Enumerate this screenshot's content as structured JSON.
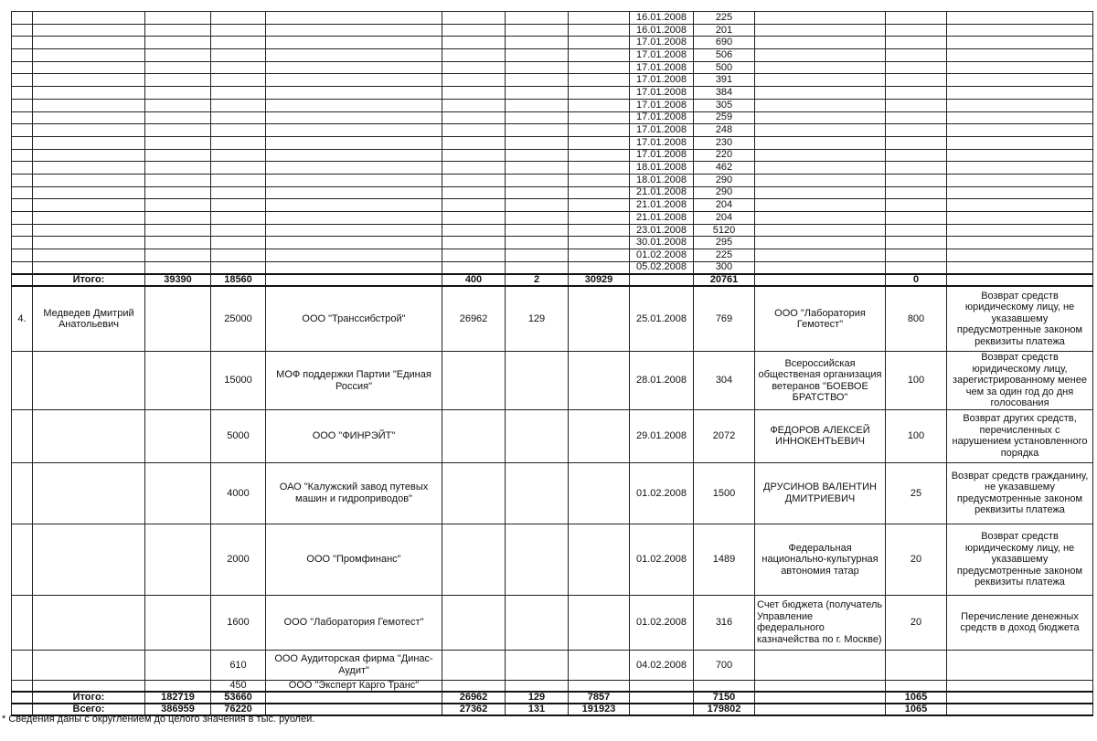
{
  "table": {
    "rows": [
      [
        "",
        "",
        "",
        "",
        "",
        "",
        "",
        "",
        "16.01.2008",
        "225",
        "",
        "",
        ""
      ],
      [
        "",
        "",
        "",
        "",
        "",
        "",
        "",
        "",
        "16.01.2008",
        "201",
        "",
        "",
        ""
      ],
      [
        "",
        "",
        "",
        "",
        "",
        "",
        "",
        "",
        "17.01.2008",
        "690",
        "",
        "",
        ""
      ],
      [
        "",
        "",
        "",
        "",
        "",
        "",
        "",
        "",
        "17.01.2008",
        "506",
        "",
        "",
        ""
      ],
      [
        "",
        "",
        "",
        "",
        "",
        "",
        "",
        "",
        "17.01.2008",
        "500",
        "",
        "",
        ""
      ],
      [
        "",
        "",
        "",
        "",
        "",
        "",
        "",
        "",
        "17.01.2008",
        "391",
        "",
        "",
        ""
      ],
      [
        "",
        "",
        "",
        "",
        "",
        "",
        "",
        "",
        "17.01.2008",
        "384",
        "",
        "",
        ""
      ],
      [
        "",
        "",
        "",
        "",
        "",
        "",
        "",
        "",
        "17.01.2008",
        "305",
        "",
        "",
        ""
      ],
      [
        "",
        "",
        "",
        "",
        "",
        "",
        "",
        "",
        "17.01.2008",
        "259",
        "",
        "",
        ""
      ],
      [
        "",
        "",
        "",
        "",
        "",
        "",
        "",
        "",
        "17.01.2008",
        "248",
        "",
        "",
        ""
      ],
      [
        "",
        "",
        "",
        "",
        "",
        "",
        "",
        "",
        "17.01.2008",
        "230",
        "",
        "",
        ""
      ],
      [
        "",
        "",
        "",
        "",
        "",
        "",
        "",
        "",
        "17.01.2008",
        "220",
        "",
        "",
        ""
      ],
      [
        "",
        "",
        "",
        "",
        "",
        "",
        "",
        "",
        "18.01.2008",
        "462",
        "",
        "",
        ""
      ],
      [
        "",
        "",
        "",
        "",
        "",
        "",
        "",
        "",
        "18.01.2008",
        "290",
        "",
        "",
        ""
      ],
      [
        "",
        "",
        "",
        "",
        "",
        "",
        "",
        "",
        "21.01.2008",
        "290",
        "",
        "",
        ""
      ],
      [
        "",
        "",
        "",
        "",
        "",
        "",
        "",
        "",
        "21.01.2008",
        "204",
        "",
        "",
        ""
      ],
      [
        "",
        "",
        "",
        "",
        "",
        "",
        "",
        "",
        "21.01.2008",
        "204",
        "",
        "",
        ""
      ],
      [
        "",
        "",
        "",
        "",
        "",
        "",
        "",
        "",
        "23.01.2008",
        "5120",
        "",
        "",
        ""
      ],
      [
        "",
        "",
        "",
        "",
        "",
        "",
        "",
        "",
        "30.01.2008",
        "295",
        "",
        "",
        ""
      ],
      [
        "",
        "",
        "",
        "",
        "",
        "",
        "",
        "",
        "01.02.2008",
        "225",
        "",
        "",
        ""
      ],
      [
        "",
        "",
        "",
        "",
        "",
        "",
        "",
        "",
        "05.02.2008",
        "300",
        "",
        "",
        ""
      ],
      [
        "",
        "Итого:",
        "39390",
        "18560",
        "",
        "400",
        "2",
        "30929",
        "",
        "20761",
        "",
        "0",
        ""
      ],
      [
        "4.",
        "Медведев Дмитрий Анатольевич",
        "",
        "25000",
        "ООО \"Транссибстрой\"",
        "26962",
        "129",
        "",
        "25.01.2008",
        "769",
        "ООО \"Лаборатория Гемотест\"",
        "800",
        "Возврат средств юридическому лицу, не указавшему предусмотренные законом реквизиты платежа"
      ],
      [
        "",
        "",
        "",
        "15000",
        "МОФ поддержки Партии \"Единая Россия\"",
        "",
        "",
        "",
        "28.01.2008",
        "304",
        "Всероссийская общественая организация ветеранов \"БОЕВОЕ БРАТСТВО\"",
        "100",
        "Возврат средств юридическому лицу, зарегистрированному менее чем за один год до дня голосования"
      ],
      [
        "",
        "",
        "",
        "5000",
        "ООО \"ФИНРЭЙТ\"",
        "",
        "",
        "",
        "29.01.2008",
        "2072",
        "ФЕДОРОВ АЛЕКСЕЙ ИННОКЕНТЬЕВИЧ",
        "100",
        "Возврат других средств, перечисленных с нарушением установленного порядка"
      ],
      [
        "",
        "",
        "",
        "4000",
        "ОАО \"Калужский завод путевых машин и гидроприводов\"",
        "",
        "",
        "",
        "01.02.2008",
        "1500",
        "ДРУСИНОВ ВАЛЕНТИН ДМИТРИЕВИЧ",
        "25",
        "Возврат средств гражданину, не указавшему предусмотренные законом реквизиты платежа"
      ],
      [
        "",
        "",
        "",
        "2000",
        "ООО \"Промфинанс\"",
        "",
        "",
        "",
        "01.02.2008",
        "1489",
        "Федеральная национально-культурная автономия татар",
        "20",
        "Возврат средств юридическому лицу, не указавшему предусмотренные законом реквизиты платежа"
      ],
      [
        "",
        "",
        "",
        "1600",
        "ООО \"Лаборатория Гемотест\"",
        "",
        "",
        "",
        "01.02.2008",
        "316",
        "Счет бюджета (получатель Управление федерального казначейства по г. Москве)",
        "20",
        "Перечисление денежных средств в доход бюджета"
      ],
      [
        "",
        "",
        "",
        "610",
        "ООО Аудиторская фирма \"Динас-Аудит\"",
        "",
        "",
        "",
        "04.02.2008",
        "700",
        "",
        "",
        ""
      ],
      [
        "",
        "",
        "",
        "450",
        "ООО \"Эксперт Карго Транс\"",
        "",
        "",
        "",
        "",
        "",
        "",
        "",
        ""
      ],
      [
        "",
        "Итого:",
        "182719",
        "53660",
        "",
        "26962",
        "129",
        "7857",
        "",
        "7150",
        "",
        "1065",
        ""
      ],
      [
        "",
        "Всего:",
        "386959",
        "76220",
        "",
        "27362",
        "131",
        "191923",
        "",
        "179802",
        "",
        "1065",
        ""
      ]
    ]
  },
  "footnote": "* Сведения даны с округлением до целого значения в тыс. рублей."
}
